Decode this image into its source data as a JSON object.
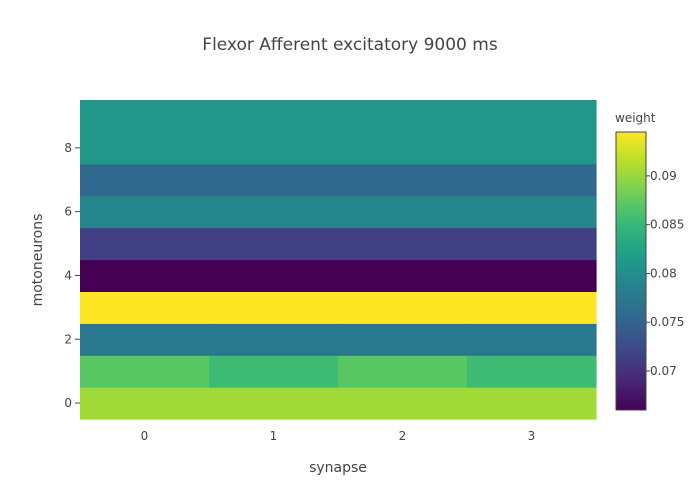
{
  "chart_data": {
    "type": "heatmap",
    "title": "Flexor Afferent excitatory 9000 ms",
    "xlabel": "synapse",
    "ylabel": "motoneurons",
    "x": [
      0,
      1,
      2,
      3
    ],
    "y": [
      0,
      1,
      2,
      3,
      4,
      5,
      6,
      7,
      8,
      9
    ],
    "xticks": [
      "0",
      "1",
      "2",
      "3"
    ],
    "yticks": [
      {
        "value": 0,
        "label": "0"
      },
      {
        "value": 2,
        "label": "2"
      },
      {
        "value": 4,
        "label": "4"
      },
      {
        "value": 6,
        "label": "6"
      },
      {
        "value": 8,
        "label": "8"
      }
    ],
    "z": [
      [
        0.0905,
        0.0905,
        0.0905,
        0.0905
      ],
      [
        0.087,
        0.0855,
        0.087,
        0.0855
      ],
      [
        0.0775,
        0.0775,
        0.0775,
        0.0775
      ],
      [
        0.0945,
        0.0945,
        0.0945,
        0.0945
      ],
      [
        0.066,
        0.066,
        0.066,
        0.066
      ],
      [
        0.0715,
        0.0715,
        0.0715,
        0.0715
      ],
      [
        0.079,
        0.079,
        0.079,
        0.079
      ],
      [
        0.0755,
        0.0755,
        0.0755,
        0.0755
      ],
      [
        0.081,
        0.081,
        0.081,
        0.081
      ],
      [
        0.081,
        0.081,
        0.081,
        0.081
      ]
    ],
    "colorbar": {
      "title": "weight",
      "min": 0.066,
      "max": 0.0945,
      "colorscale": "viridis",
      "ticks": [
        {
          "value": 0.07,
          "label": "0.07"
        },
        {
          "value": 0.075,
          "label": "0.075"
        },
        {
          "value": 0.08,
          "label": "0.08"
        },
        {
          "value": 0.085,
          "label": "0.085"
        },
        {
          "value": 0.09,
          "label": "0.09"
        }
      ]
    },
    "colors": {
      "text": "#444444",
      "viridis": [
        "#440154",
        "#482878",
        "#3e4989",
        "#31688e",
        "#26828e",
        "#1f9e89",
        "#35b779",
        "#6ece58",
        "#b5de2b",
        "#fde725"
      ]
    }
  }
}
